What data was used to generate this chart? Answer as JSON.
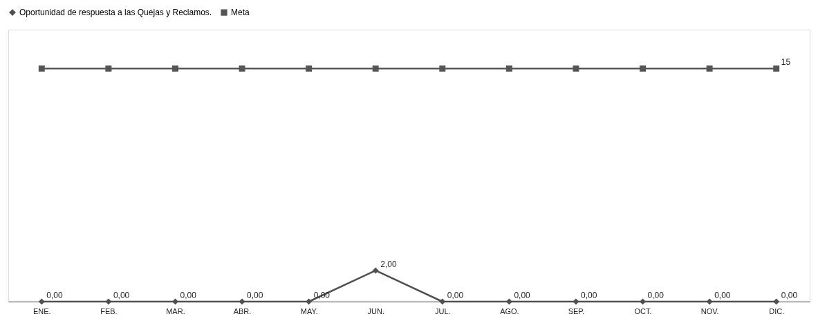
{
  "chart_data": {
    "type": "line",
    "categories": [
      "ENE.",
      "FEB.",
      "MAR.",
      "ABR.",
      "MAY.",
      "JUN.",
      "JUL.",
      "AGO.",
      "SEP.",
      "OCT.",
      "NOV.",
      "DIC."
    ],
    "series": [
      {
        "name": "Oportunidad de respuesta a las Quejas y Reclamos.",
        "color": "#505050",
        "marker": "diamond",
        "values": [
          0,
          0,
          0,
          0,
          0,
          2,
          0,
          0,
          0,
          0,
          0,
          0
        ],
        "value_labels": [
          "0,00",
          "0,00",
          "0,00",
          "0,00",
          "0,00",
          "2,00",
          "0,00",
          "0,00",
          "0,00",
          "0,00",
          "0,00",
          "0,00"
        ]
      },
      {
        "name": "Meta",
        "color": "#555555",
        "marker": "square",
        "values": [
          15,
          15,
          15,
          15,
          15,
          15,
          15,
          15,
          15,
          15,
          15,
          15
        ],
        "value_labels": [
          null,
          null,
          null,
          null,
          null,
          null,
          null,
          null,
          null,
          null,
          null,
          "15"
        ]
      }
    ],
    "ylim": [
      0,
      17.5
    ],
    "tick_labels": "x",
    "legend": "top"
  }
}
